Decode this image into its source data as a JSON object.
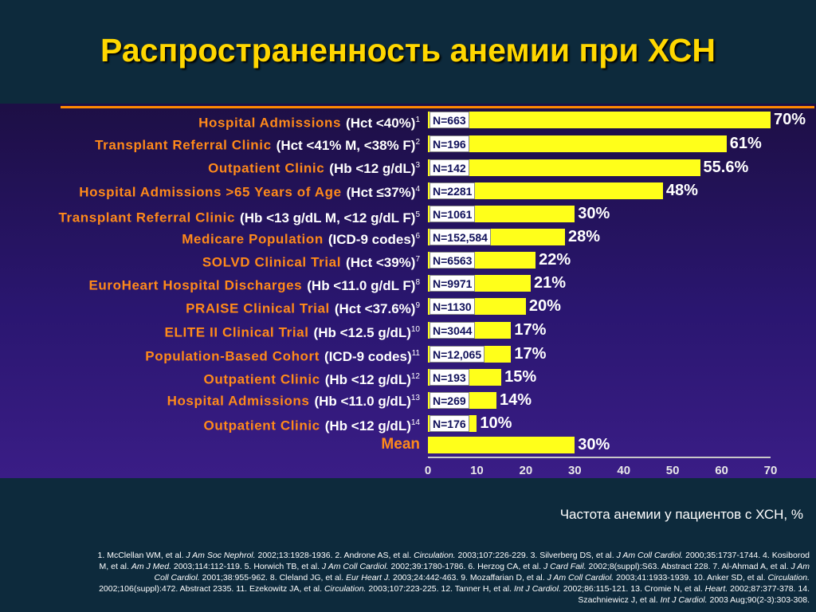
{
  "title": "Распространенность анемии при ХСН",
  "chart_data": {
    "type": "bar",
    "orientation": "horizontal",
    "rows": [
      {
        "name": "Hospital Admissions",
        "criterion": "(Hct <40%)",
        "ref": "1",
        "n": "N=663",
        "value": 70,
        "label": "70%"
      },
      {
        "name": "Transplant Referral Clinic",
        "criterion": "(Hct <41% M, <38% F)",
        "ref": "2",
        "n": "N=196",
        "value": 61,
        "label": "61%"
      },
      {
        "name": "Outpatient Clinic",
        "criterion": "(Hb <12 g/dL)",
        "ref": "3",
        "n": "N=142",
        "value": 55.6,
        "label": "55.6%"
      },
      {
        "name": "Hospital Admissions >65 Years of Age",
        "criterion": "(Hct ≤37%)",
        "ref": "4",
        "n": "N=2281",
        "value": 48,
        "label": "48%"
      },
      {
        "name": "Transplant Referral Clinic",
        "criterion": "(Hb <13 g/dL M, <12 g/dL F)",
        "ref": "5",
        "n": "N=1061",
        "value": 30,
        "label": "30%"
      },
      {
        "name": "Medicare Population",
        "criterion": "(ICD-9 codes)",
        "ref": "6",
        "n": "N=152,584",
        "value": 28,
        "label": "28%"
      },
      {
        "name": "SOLVD Clinical Trial",
        "criterion": "(Hct <39%)",
        "ref": "7",
        "n": "N=6563",
        "value": 22,
        "label": "22%"
      },
      {
        "name": "EuroHeart Hospital Discharges",
        "criterion": "(Hb <11.0 g/dL F)",
        "ref": "8",
        "n": "N=9971",
        "value": 21,
        "label": "21%"
      },
      {
        "name": "PRAISE Clinical Trial",
        "criterion": "(Hct <37.6%)",
        "ref": "9",
        "n": "N=1130",
        "value": 20,
        "label": "20%"
      },
      {
        "name": "ELITE II Clinical Trial",
        "criterion": "(Hb <12.5 g/dL)",
        "ref": "10",
        "n": "N=3044",
        "value": 17,
        "label": "17%"
      },
      {
        "name": "Population-Based Cohort",
        "criterion": "(ICD-9 codes)",
        "ref": "11",
        "n": "N=12,065",
        "value": 17,
        "label": "17%"
      },
      {
        "name": "Outpatient Clinic",
        "criterion": "(Hb <12 g/dL)",
        "ref": "12",
        "n": "N=193",
        "value": 15,
        "label": "15%"
      },
      {
        "name": "Hospital Admissions",
        "criterion": "(Hb <11.0 g/dL)",
        "ref": "13",
        "n": "N=269",
        "value": 14,
        "label": "14%"
      },
      {
        "name": "Outpatient Clinic",
        "criterion": "(Hb <12 g/dL)",
        "ref": "14",
        "n": "N=176",
        "value": 10,
        "label": "10%"
      },
      {
        "name": "Mean",
        "criterion": "",
        "ref": "",
        "n": "",
        "value": 30,
        "label": "30%"
      }
    ],
    "x_ticks": [
      "0",
      "10",
      "20",
      "30",
      "40",
      "50",
      "60",
      "70"
    ],
    "xlim": [
      0,
      70
    ],
    "xlabel": "Частота анемии у пациентов с ХСН, %",
    "colors": {
      "bar": "#ffff1a",
      "label_name": "#ff8a1a",
      "title": "#ffd700"
    }
  },
  "references": [
    {
      "t": "1. McClellan WM, et al. "
    },
    {
      "t": "J Am Soc Nephrol.",
      "i": true
    },
    {
      "t": " 2002;13:1928-1936. 2. Androne AS, et al. "
    },
    {
      "t": "Circulation.",
      "i": true
    },
    {
      "t": " 2003;107:226-229. 3. Silverberg DS, et al. "
    },
    {
      "t": "J Am Coll Cardiol.",
      "i": true
    },
    {
      "t": " 2000;35:1737-1744. 4. Kosiborod M, et al. "
    },
    {
      "t": "Am J Med.",
      "i": true
    },
    {
      "t": " 2003;114:112-119. 5. Horwich TB, et al. "
    },
    {
      "t": "J Am Coll Cardiol.",
      "i": true
    },
    {
      "t": " 2002;39:1780-1786. 6. Herzog CA, et al. "
    },
    {
      "t": "J Card Fail.",
      "i": true
    },
    {
      "t": " 2002;8(suppl):S63. Abstract 228. 7. Al-Ahmad A, et al. "
    },
    {
      "t": "J Am Coll Cardiol.",
      "i": true
    },
    {
      "t": " 2001;38:955-962. 8. Cleland JG, et al. "
    },
    {
      "t": "Eur Heart J.",
      "i": true
    },
    {
      "t": " 2003;24:442-463. 9. Mozaffarian D, et al. "
    },
    {
      "t": "J Am Coll Cardiol.",
      "i": true
    },
    {
      "t": " 2003;41:1933-1939. 10. Anker SD, et al. "
    },
    {
      "t": "Circulation.",
      "i": true
    },
    {
      "t": " 2002;106(suppl):472. Abstract 2335. 11. Ezekowitz JA, et al. "
    },
    {
      "t": "Circulation.",
      "i": true
    },
    {
      "t": " 2003;107:223-225. 12. Tanner H, et al. "
    },
    {
      "t": "Int J Cardiol.",
      "i": true
    },
    {
      "t": " 2002;86:115-121. 13. Cromie N, et al. "
    },
    {
      "t": "Heart.",
      "i": true
    },
    {
      "t": " 2002;87:377-378. 14. Szachniewicz J, et al. "
    },
    {
      "t": "Int J Cardiol.",
      "i": true
    },
    {
      "t": " 2003 Aug;90(2-3):303-308."
    }
  ]
}
